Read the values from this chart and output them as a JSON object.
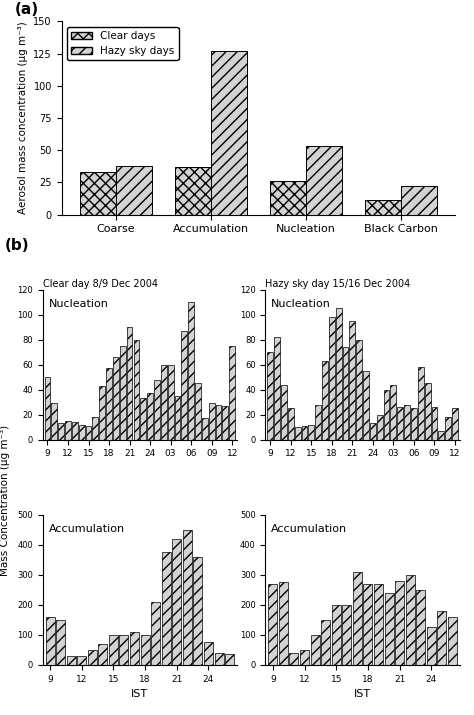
{
  "panel_a": {
    "categories": [
      "Coarse",
      "Accumulation",
      "Nucleation",
      "Black Carbon"
    ],
    "clear_days": [
      33,
      37,
      26,
      11
    ],
    "hazy_days": [
      38,
      127,
      53,
      22
    ],
    "ylabel": "Aerosol mass concentration (μg m⁻³)",
    "ylim": [
      0,
      150
    ],
    "yticks": [
      0,
      25,
      50,
      75,
      100,
      125,
      150
    ]
  },
  "panel_b": {
    "xlabel": "IST",
    "ylabel": "Mass Concentration (μg m⁻³)",
    "xtick_labels": [
      "9",
      "12",
      "15",
      "18",
      "21",
      "24",
      "03",
      "06",
      "09",
      "12",
      "15",
      "18"
    ],
    "clear_nucleation_title": "Clear day 8/9 Dec 2004",
    "clear_accum_title": "Accumulation",
    "hazy_nucleation_title": "Hazy sky day 15/16 Dec 2004",
    "hazy_accum_title": "Accumulation",
    "nucleation_label": "Nucleation",
    "clear_nucleation": [
      50,
      29,
      13,
      15,
      14,
      12,
      11,
      18,
      43,
      57,
      66,
      75,
      90,
      80,
      33,
      37,
      48,
      60,
      60,
      35,
      87,
      110,
      45,
      17,
      29,
      28,
      27,
      75
    ],
    "clear_accumulation": [
      160,
      150,
      30,
      30,
      50,
      70,
      100,
      100,
      110,
      100,
      210,
      375,
      420,
      450,
      360,
      75,
      40,
      35
    ],
    "hazy_nucleation": [
      70,
      82,
      44,
      25,
      10,
      11,
      12,
      28,
      63,
      98,
      105,
      74,
      95,
      80,
      55,
      13,
      20,
      40,
      44,
      26,
      28,
      25,
      58,
      45,
      26,
      7,
      18,
      25
    ],
    "hazy_accumulation": [
      270,
      275,
      40,
      50,
      100,
      150,
      200,
      200,
      310,
      270,
      270,
      240,
      280,
      300,
      250,
      125,
      180,
      160
    ],
    "nuc_ylim": [
      0,
      120
    ],
    "nuc_yticks": [
      0,
      20,
      40,
      60,
      80,
      100,
      120
    ],
    "acc_ylim": [
      0,
      500
    ],
    "acc_yticks": [
      0,
      100,
      200,
      300,
      400,
      500
    ]
  },
  "hatch_clear": "xxx",
  "hatch_hazy": "///",
  "bar_color": "lightgray",
  "bar_edge_color": "black",
  "background": "white"
}
